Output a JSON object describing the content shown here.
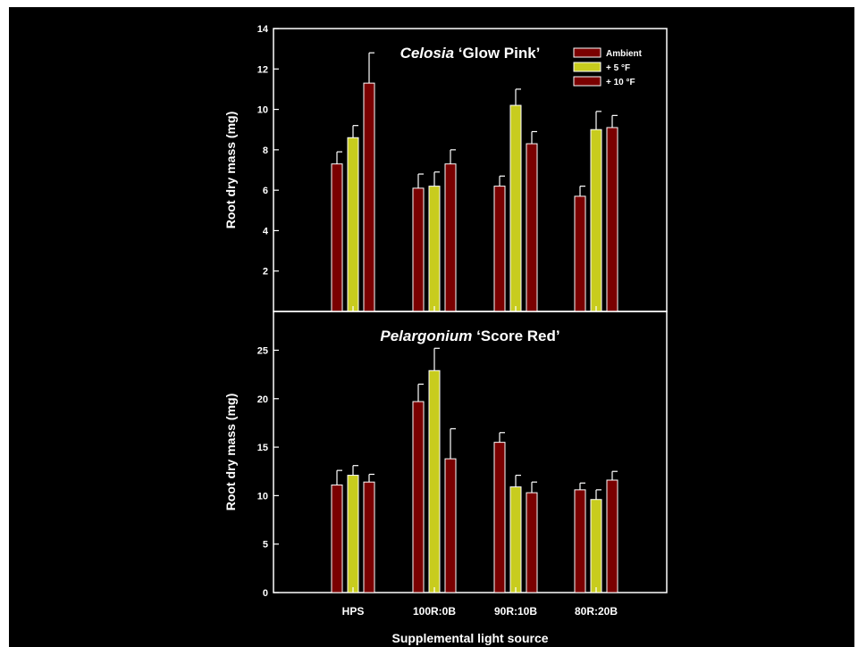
{
  "colors": {
    "background": "#000000",
    "axis": "#ffffff",
    "ambient": "#7a0000",
    "plus5": "#c8cc1e",
    "plus10": "#7a0000",
    "error_bar": "#ffffff"
  },
  "legend": [
    {
      "label": "Ambient",
      "color": "#7a0000"
    },
    {
      "label": "+ 5 °F",
      "color": "#c8cc1e"
    },
    {
      "label": "+ 10 °F",
      "color": "#7a0000"
    }
  ],
  "shared": {
    "xlabel": "Supplemental light source",
    "categories": [
      "HPS",
      "100R:0B",
      "90R:10B",
      "80R:20B"
    ]
  },
  "chart_data": [
    {
      "type": "bar",
      "title_italic": "Celosia",
      "title_rest": " ‘Glow Pink’",
      "ylabel": "Root dry mass (mg)",
      "ylim": [
        0,
        14
      ],
      "yticks": [
        2,
        4,
        6,
        8,
        10,
        12,
        14
      ],
      "categories": [
        "HPS",
        "100R:0B",
        "90R:10B",
        "80R:20B"
      ],
      "series": [
        {
          "name": "Ambient",
          "values": [
            7.3,
            6.1,
            6.2,
            5.7
          ],
          "errors": [
            0.6,
            0.7,
            0.5,
            0.5
          ]
        },
        {
          "name": "+ 5 °F",
          "values": [
            8.6,
            6.2,
            10.2,
            9.0
          ],
          "errors": [
            0.6,
            0.7,
            0.8,
            0.9
          ]
        },
        {
          "name": "+ 10 °F",
          "values": [
            11.3,
            7.3,
            8.3,
            9.1
          ],
          "errors": [
            1.5,
            0.7,
            0.6,
            0.6
          ]
        }
      ],
      "legend_position": "top-right"
    },
    {
      "type": "bar",
      "title_italic": "Pelargonium",
      "title_rest": " ‘Score Red’",
      "ylabel": "Root dry mass (mg)",
      "xlabel": "Supplemental light source",
      "ylim": [
        0,
        29
      ],
      "yticks": [
        0,
        5,
        10,
        15,
        20,
        25
      ],
      "categories": [
        "HPS",
        "100R:0B",
        "90R:10B",
        "80R:20B"
      ],
      "series": [
        {
          "name": "Ambient",
          "values": [
            11.1,
            19.7,
            15.5,
            10.6
          ],
          "errors": [
            1.5,
            1.8,
            1.0,
            0.7
          ]
        },
        {
          "name": "+ 5 °F",
          "values": [
            12.1,
            22.9,
            10.9,
            9.6
          ],
          "errors": [
            1.0,
            2.3,
            1.2,
            1.0
          ]
        },
        {
          "name": "+ 10 °F",
          "values": [
            11.4,
            13.8,
            10.3,
            11.6
          ],
          "errors": [
            0.8,
            3.1,
            1.1,
            0.9
          ]
        }
      ]
    }
  ]
}
